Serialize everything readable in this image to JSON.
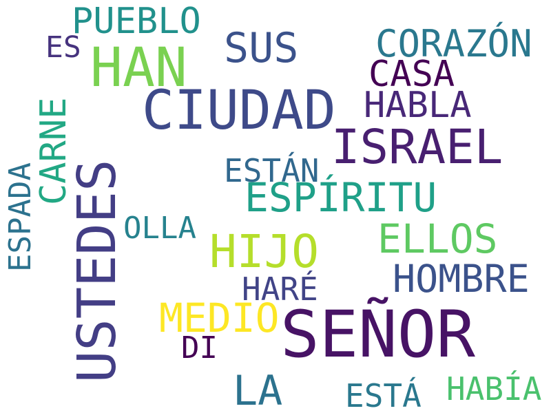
{
  "words": [
    {
      "text": "PUEBLO",
      "color": "#21918c"
    },
    {
      "text": "ES",
      "color": "#46337e"
    },
    {
      "text": "HAN",
      "color": "#7ad151"
    },
    {
      "text": "SUS",
      "color": "#3b528b"
    },
    {
      "text": "CORAZÓN",
      "color": "#2a788e"
    },
    {
      "text": "CASA",
      "color": "#440154"
    },
    {
      "text": "CIUDAD",
      "color": "#3e4a89"
    },
    {
      "text": "HABLA",
      "color": "#482878"
    },
    {
      "text": "ISRAEL",
      "color": "#481f70"
    },
    {
      "text": "CARNE",
      "color": "#22a884"
    },
    {
      "text": "ESPADA",
      "color": "#2c728e"
    },
    {
      "text": "USTEDES",
      "color": "#433e85"
    },
    {
      "text": "ESTÁN",
      "color": "#31688e"
    },
    {
      "text": "ESPÍRITU",
      "color": "#1fa088"
    },
    {
      "text": "OLLA",
      "color": "#26828e"
    },
    {
      "text": "HIJO",
      "color": "#b5de2b"
    },
    {
      "text": "ELLOS",
      "color": "#5ec962"
    },
    {
      "text": "HOMBRE",
      "color": "#3b528b"
    },
    {
      "text": "HARÉ",
      "color": "#414487"
    },
    {
      "text": "MEDIO",
      "color": "#fde725"
    },
    {
      "text": "SEÑOR",
      "color": "#471365"
    },
    {
      "text": "DI",
      "color": "#440154"
    },
    {
      "text": "LA",
      "color": "#2c728e"
    },
    {
      "text": "ESTÁ",
      "color": "#2a788e"
    },
    {
      "text": "HABÍA",
      "color": "#4ac16d"
    }
  ]
}
